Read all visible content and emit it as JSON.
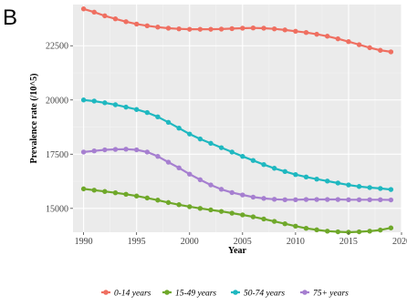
{
  "panel_label": "B",
  "chart_data": {
    "type": "line",
    "title": "",
    "xlabel": "Year",
    "ylabel": "Prevalence rate (/10^5)",
    "xlim": [
      1989,
      2020
    ],
    "ylim": [
      13900,
      24400
    ],
    "x_ticks": [
      1990,
      1995,
      2000,
      2005,
      2010,
      2015,
      2020
    ],
    "x_tick_labels": [
      "1990",
      "1995",
      "2000",
      "2005",
      "2010",
      "2015",
      "2020"
    ],
    "y_ticks": [
      15000,
      17500,
      20000,
      22500
    ],
    "y_tick_labels": [
      "15000",
      "17500",
      "20000",
      "22500"
    ],
    "grid": true,
    "legend_position": "bottom",
    "x": [
      1990,
      1991,
      1992,
      1993,
      1994,
      1995,
      1996,
      1997,
      1998,
      1999,
      2000,
      2001,
      2002,
      2003,
      2004,
      2005,
      2006,
      2007,
      2008,
      2009,
      2010,
      2011,
      2012,
      2013,
      2014,
      2015,
      2016,
      2017,
      2018,
      2019
    ],
    "series": [
      {
        "name": "0-14 years",
        "color": "#ef6f61",
        "values": [
          24200,
          24050,
          23880,
          23740,
          23610,
          23500,
          23420,
          23360,
          23310,
          23280,
          23260,
          23260,
          23260,
          23270,
          23290,
          23310,
          23320,
          23310,
          23280,
          23230,
          23170,
          23110,
          23030,
          22940,
          22820,
          22690,
          22550,
          22410,
          22290,
          22220
        ]
      },
      {
        "name": "15-49 years",
        "color": "#6fa82a",
        "values": [
          15900,
          15840,
          15780,
          15720,
          15650,
          15570,
          15480,
          15380,
          15270,
          15170,
          15080,
          15000,
          14930,
          14860,
          14780,
          14700,
          14610,
          14510,
          14400,
          14290,
          14180,
          14080,
          14010,
          13950,
          13920,
          13900,
          13920,
          13950,
          14000,
          14100
        ]
      },
      {
        "name": "50-74 years",
        "color": "#1fb8c0",
        "values": [
          20000,
          19950,
          19870,
          19780,
          19670,
          19560,
          19420,
          19220,
          18970,
          18700,
          18430,
          18200,
          18000,
          17800,
          17600,
          17400,
          17210,
          17020,
          16850,
          16700,
          16560,
          16450,
          16350,
          16260,
          16170,
          16080,
          16010,
          15960,
          15920,
          15870
        ]
      },
      {
        "name": "75+ years",
        "color": "#a67fd0",
        "values": [
          17600,
          17650,
          17700,
          17720,
          17730,
          17700,
          17600,
          17400,
          17130,
          16870,
          16580,
          16320,
          16080,
          15880,
          15730,
          15620,
          15520,
          15460,
          15420,
          15400,
          15400,
          15410,
          15410,
          15410,
          15410,
          15400,
          15400,
          15400,
          15400,
          15390
        ]
      }
    ]
  }
}
